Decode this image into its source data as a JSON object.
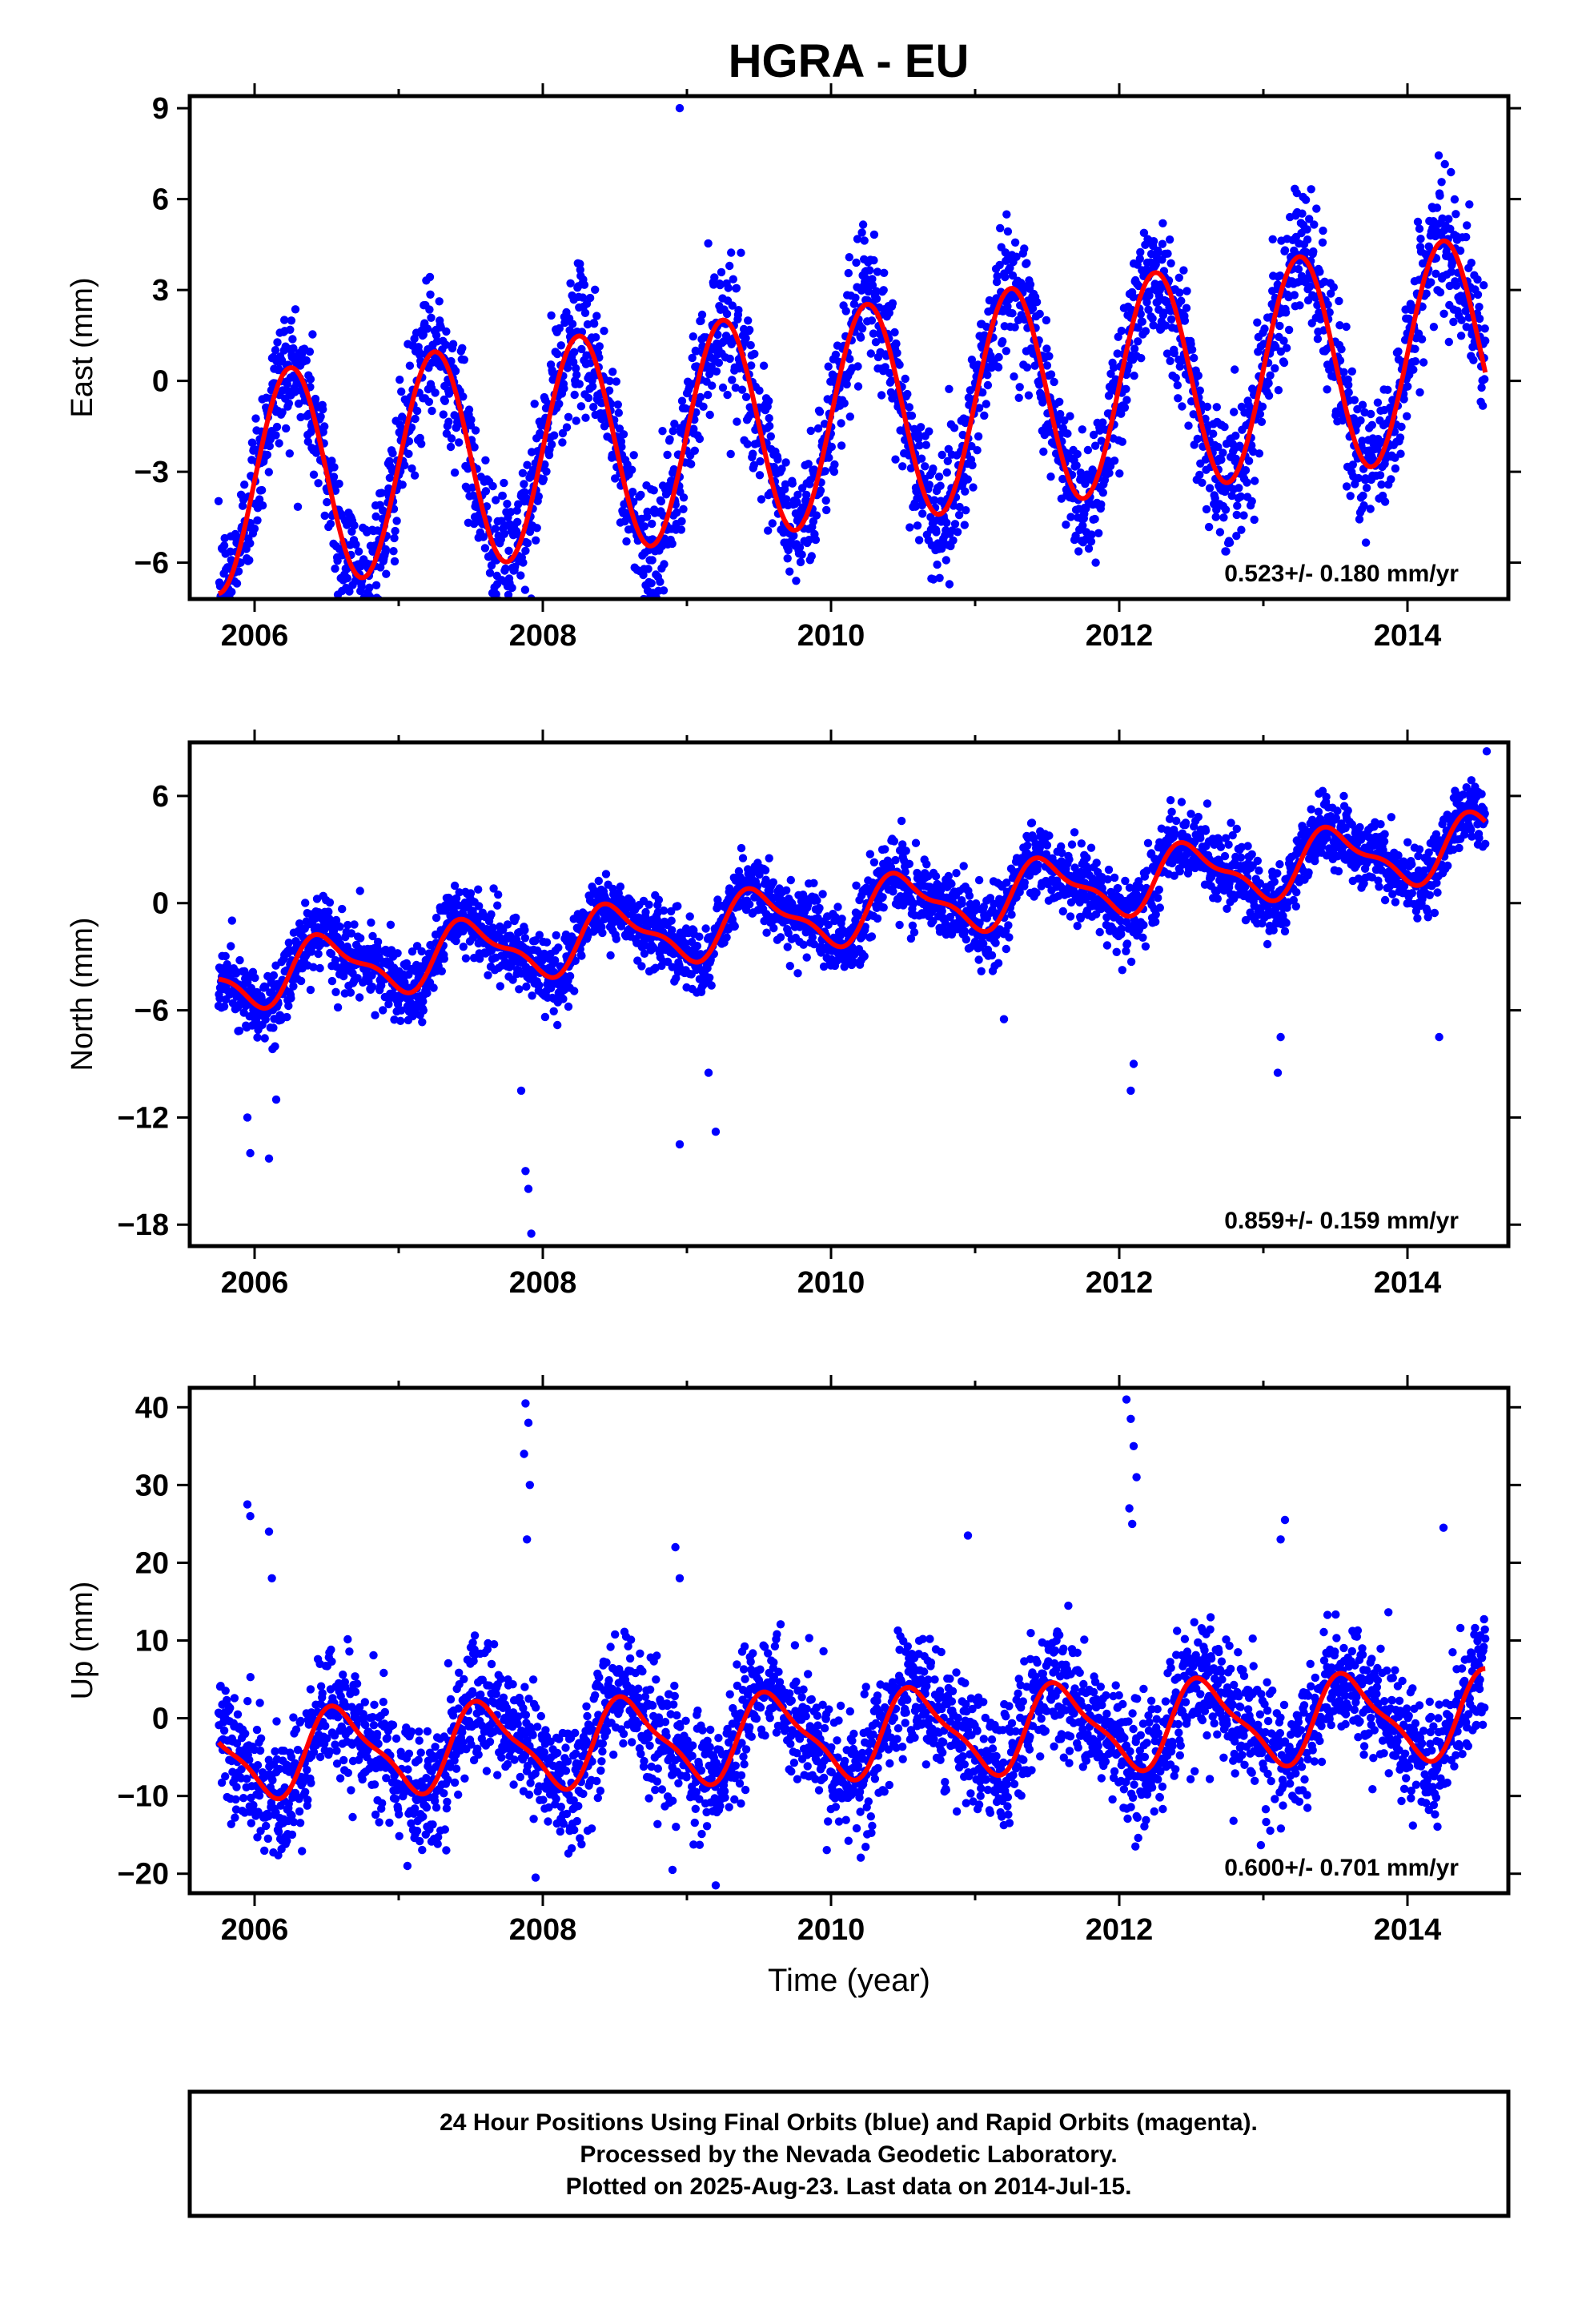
{
  "title": "HGRA - EU",
  "footer": {
    "lines": [
      "24 Hour Positions Using Final Orbits (blue) and Rapid Orbits (magenta).",
      "Processed by the Nevada Geodetic Laboratory.",
      "Plotted on 2025-Aug-23. Last data on 2014-Jul-15."
    ]
  },
  "colors": {
    "points": "#0000ff",
    "fit": "#ff0000",
    "axes": "#000000"
  },
  "chart_data": [
    {
      "type": "scatter",
      "ylabel": "East (mm)",
      "xlabel": "",
      "xlim": [
        2005.55,
        2014.7
      ],
      "ylim": [
        -7.2,
        9.4
      ],
      "xticks": [
        "2006",
        "2008",
        "2010",
        "2012",
        "2014"
      ],
      "yticks": [
        "-6",
        "-3",
        "0",
        "3",
        "6",
        "9"
      ],
      "rate_label": "0.523+/- 0.180 mm/yr",
      "model": {
        "rate": 0.523,
        "offset": -1.2,
        "annual_amp": 3.6,
        "annual_phase": 2006.0,
        "semiannual_amp": 0.0,
        "noise": 1.1
      },
      "x_range": [
        2005.75,
        2014.54
      ],
      "outliers": [
        [
          2008.95,
          9.0
        ]
      ]
    },
    {
      "type": "scatter",
      "ylabel": "North (mm)",
      "xlabel": "",
      "xlim": [
        2005.55,
        2014.7
      ],
      "ylim": [
        -19.2,
        9.0
      ],
      "xticks": [
        "2006",
        "2008",
        "2010",
        "2012",
        "2014"
      ],
      "yticks": [
        "-18",
        "-12",
        "-6",
        "0",
        "6"
      ],
      "rate_label": "0.859+/- 0.159 mm/yr",
      "model": {
        "rate": 0.859,
        "offset": -0.6,
        "annual_amp": 1.6,
        "annual_phase": 2006.25,
        "semiannual_amp": 0.6,
        "noise": 1.0
      },
      "x_range": [
        2005.75,
        2014.54
      ],
      "outliers": [
        [
          2005.95,
          -12.0
        ],
        [
          2005.97,
          -14.0
        ],
        [
          2006.1,
          -14.3
        ],
        [
          2006.15,
          -11.0
        ],
        [
          2007.9,
          -16.0
        ],
        [
          2007.88,
          -15.0
        ],
        [
          2007.92,
          -18.5
        ],
        [
          2007.85,
          -10.5
        ],
        [
          2008.95,
          -13.5
        ],
        [
          2009.2,
          -12.8
        ],
        [
          2009.15,
          -9.5
        ],
        [
          2011.2,
          -6.5
        ],
        [
          2012.08,
          -10.5
        ],
        [
          2012.1,
          -9.0
        ],
        [
          2013.1,
          -9.5
        ],
        [
          2013.12,
          -7.5
        ],
        [
          2014.22,
          -7.5
        ],
        [
          2014.55,
          8.5
        ]
      ]
    },
    {
      "type": "scatter",
      "ylabel": "Up (mm)",
      "xlabel": "Time (year)",
      "xlim": [
        2005.55,
        2014.7
      ],
      "ylim": [
        -22.5,
        42.5
      ],
      "xticks": [
        "2006",
        "2008",
        "2010",
        "2012",
        "2014"
      ],
      "yticks": [
        "-20",
        "-10",
        "0",
        "10",
        "20",
        "30",
        "40"
      ],
      "rate_label": "0.600+/- 0.701 mm/yr",
      "model": {
        "rate": 0.6,
        "offset": -2.2,
        "annual_amp": 5.2,
        "annual_phase": 2006.35,
        "semiannual_amp": 1.5,
        "noise": 4.0
      },
      "x_range": [
        2005.75,
        2014.54
      ],
      "outliers": [
        [
          2005.95,
          27.5
        ],
        [
          2005.97,
          26.0
        ],
        [
          2006.1,
          24.0
        ],
        [
          2006.12,
          18.0
        ],
        [
          2007.88,
          40.5
        ],
        [
          2007.9,
          38.0
        ],
        [
          2007.87,
          34.0
        ],
        [
          2007.91,
          30.0
        ],
        [
          2007.89,
          23.0
        ],
        [
          2008.92,
          22.0
        ],
        [
          2008.95,
          18.0
        ],
        [
          2010.95,
          23.5
        ],
        [
          2012.05,
          41.0
        ],
        [
          2012.08,
          38.5
        ],
        [
          2012.1,
          35.0
        ],
        [
          2012.12,
          31.0
        ],
        [
          2012.07,
          27.0
        ],
        [
          2012.09,
          25.0
        ],
        [
          2013.15,
          25.5
        ],
        [
          2013.12,
          23.0
        ],
        [
          2014.25,
          24.5
        ],
        [
          2009.2,
          -21.5
        ],
        [
          2008.9,
          -19.5
        ],
        [
          2007.95,
          -20.5
        ]
      ]
    }
  ]
}
